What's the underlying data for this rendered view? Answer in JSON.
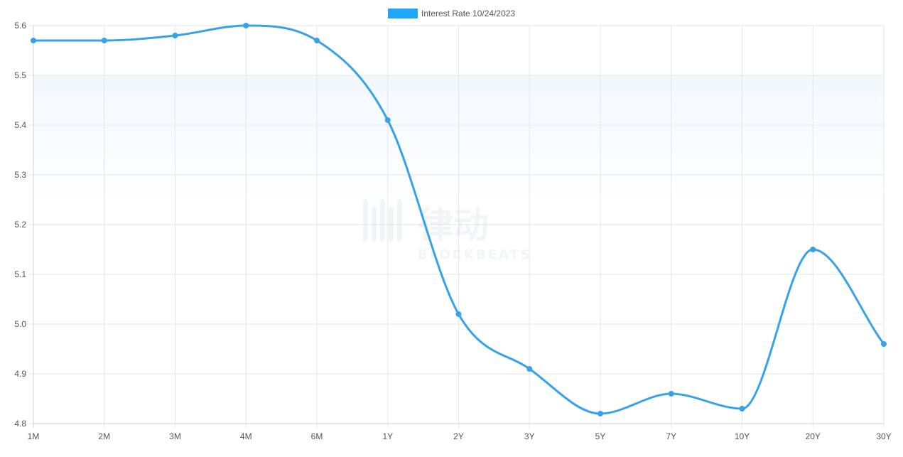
{
  "chart_data": {
    "type": "line",
    "categories": [
      "1M",
      "2M",
      "3M",
      "4M",
      "6M",
      "1Y",
      "2Y",
      "3Y",
      "5Y",
      "7Y",
      "10Y",
      "20Y",
      "30Y"
    ],
    "series": [
      {
        "name": "Interest Rate 10/24/2023",
        "values": [
          5.57,
          5.57,
          5.58,
          5.6,
          5.57,
          5.41,
          5.02,
          4.91,
          4.82,
          4.86,
          4.83,
          5.15,
          4.96
        ]
      }
    ],
    "ylim": [
      4.8,
      5.6
    ],
    "yticks": [
      "4.8",
      "4.9",
      "5.0",
      "5.1",
      "5.2",
      "5.3",
      "5.4",
      "5.5",
      "5.6"
    ],
    "grid": true,
    "legend_position": "top-center",
    "colors": {
      "line": "#36a2eb",
      "legend_box": "#1ea6f8",
      "grid": "#e5e5e5",
      "axis": "#d0d0d0",
      "text": "#555555"
    }
  },
  "watermark": {
    "cn_text": "律动",
    "en_text": "BLOCKBEATS"
  }
}
